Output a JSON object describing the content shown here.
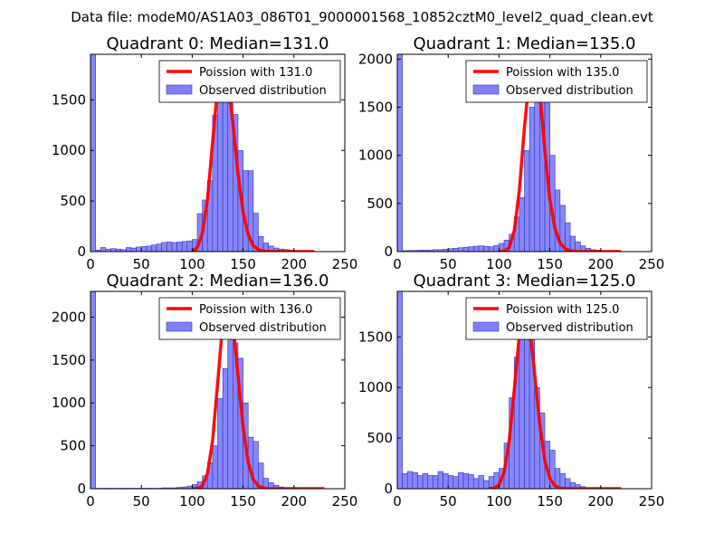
{
  "suptitle": "Data file: modeM0/AS1A03_086T01_9000001568_10852cztM0_level2_quad_clean.evt",
  "colors": {
    "bar": "#8080ff",
    "bar_edge": "#3333aa",
    "poisson": "#ff0000"
  },
  "legend": {
    "poisson_prefix": "Poission with",
    "observed": "Observed distribution"
  },
  "chart_data": [
    {
      "type": "bar",
      "title": "Quadrant 0: Median=131.0",
      "median": 131.0,
      "poisson_label": "Poission with 131.0",
      "xlim": [
        0,
        250
      ],
      "ylim": [
        0,
        1950
      ],
      "xticks": [
        "0",
        "50",
        "100",
        "150",
        "200",
        "250"
      ],
      "yticks": [
        {
          "v": 0,
          "t": "0"
        },
        {
          "v": 500,
          "t": "500"
        },
        {
          "v": 1000,
          "t": "1000"
        },
        {
          "v": 1500,
          "t": "1500"
        }
      ],
      "bin_width": 5,
      "bins": [
        {
          "x": 0,
          "v": 1950
        },
        {
          "x": 5,
          "v": 15
        },
        {
          "x": 10,
          "v": 40
        },
        {
          "x": 15,
          "v": 25
        },
        {
          "x": 20,
          "v": 30
        },
        {
          "x": 25,
          "v": 25
        },
        {
          "x": 30,
          "v": 20
        },
        {
          "x": 35,
          "v": 40
        },
        {
          "x": 40,
          "v": 35
        },
        {
          "x": 45,
          "v": 45
        },
        {
          "x": 50,
          "v": 50
        },
        {
          "x": 55,
          "v": 55
        },
        {
          "x": 60,
          "v": 65
        },
        {
          "x": 65,
          "v": 75
        },
        {
          "x": 70,
          "v": 90
        },
        {
          "x": 75,
          "v": 95
        },
        {
          "x": 80,
          "v": 90
        },
        {
          "x": 85,
          "v": 95
        },
        {
          "x": 90,
          "v": 100
        },
        {
          "x": 95,
          "v": 105
        },
        {
          "x": 100,
          "v": 120
        },
        {
          "x": 105,
          "v": 375
        },
        {
          "x": 110,
          "v": 510
        },
        {
          "x": 115,
          "v": 700
        },
        {
          "x": 120,
          "v": 1350
        },
        {
          "x": 125,
          "v": 1750
        },
        {
          "x": 130,
          "v": 1875
        },
        {
          "x": 135,
          "v": 1770
        },
        {
          "x": 140,
          "v": 1355
        },
        {
          "x": 145,
          "v": 1000
        },
        {
          "x": 150,
          "v": 800
        },
        {
          "x": 155,
          "v": 800
        },
        {
          "x": 160,
          "v": 380
        },
        {
          "x": 165,
          "v": 150
        },
        {
          "x": 170,
          "v": 85
        },
        {
          "x": 175,
          "v": 55
        },
        {
          "x": 180,
          "v": 35
        },
        {
          "x": 185,
          "v": 25
        },
        {
          "x": 190,
          "v": 20
        },
        {
          "x": 195,
          "v": 15
        }
      ],
      "poisson_x": [
        100,
        105,
        110,
        115,
        120,
        125,
        130,
        135,
        140,
        145,
        150,
        155,
        160,
        165,
        170,
        175,
        180,
        185,
        190,
        195,
        200,
        205,
        210,
        215,
        220
      ],
      "poisson_y": [
        0,
        40,
        180,
        520,
        1080,
        1630,
        1870,
        1720,
        1260,
        770,
        390,
        170,
        60,
        20,
        5,
        0,
        0,
        0,
        0,
        0,
        0,
        0,
        0,
        0,
        0
      ]
    },
    {
      "type": "bar",
      "title": "Quadrant 1: Median=135.0",
      "median": 135.0,
      "poisson_label": "Poission with 135.0",
      "xlim": [
        0,
        250
      ],
      "ylim": [
        0,
        2050
      ],
      "xticks": [
        "0",
        "50",
        "100",
        "150",
        "200",
        "250"
      ],
      "yticks": [
        {
          "v": 0,
          "t": "0"
        },
        {
          "v": 500,
          "t": "500"
        },
        {
          "v": 1000,
          "t": "1000"
        },
        {
          "v": 1500,
          "t": "1500"
        },
        {
          "v": 2000,
          "t": "2000"
        }
      ],
      "bin_width": 5,
      "bins": [
        {
          "x": 0,
          "v": 2050
        },
        {
          "x": 5,
          "v": 10
        },
        {
          "x": 10,
          "v": 12
        },
        {
          "x": 15,
          "v": 12
        },
        {
          "x": 20,
          "v": 15
        },
        {
          "x": 25,
          "v": 15
        },
        {
          "x": 30,
          "v": 15
        },
        {
          "x": 35,
          "v": 20
        },
        {
          "x": 40,
          "v": 20
        },
        {
          "x": 45,
          "v": 25
        },
        {
          "x": 50,
          "v": 30
        },
        {
          "x": 55,
          "v": 35
        },
        {
          "x": 60,
          "v": 40
        },
        {
          "x": 65,
          "v": 45
        },
        {
          "x": 70,
          "v": 50
        },
        {
          "x": 75,
          "v": 55
        },
        {
          "x": 80,
          "v": 60
        },
        {
          "x": 85,
          "v": 55
        },
        {
          "x": 90,
          "v": 50
        },
        {
          "x": 95,
          "v": 65
        },
        {
          "x": 100,
          "v": 85
        },
        {
          "x": 105,
          "v": 120
        },
        {
          "x": 110,
          "v": 180
        },
        {
          "x": 115,
          "v": 360
        },
        {
          "x": 120,
          "v": 560
        },
        {
          "x": 125,
          "v": 1050
        },
        {
          "x": 130,
          "v": 1500
        },
        {
          "x": 135,
          "v": 1760
        },
        {
          "x": 140,
          "v": 1620
        },
        {
          "x": 145,
          "v": 1560
        },
        {
          "x": 150,
          "v": 1000
        },
        {
          "x": 155,
          "v": 640
        },
        {
          "x": 160,
          "v": 480
        },
        {
          "x": 165,
          "v": 300
        },
        {
          "x": 170,
          "v": 160
        },
        {
          "x": 175,
          "v": 100
        },
        {
          "x": 180,
          "v": 60
        },
        {
          "x": 185,
          "v": 35
        },
        {
          "x": 190,
          "v": 20
        },
        {
          "x": 195,
          "v": 15
        }
      ],
      "poisson_x": [
        100,
        105,
        110,
        115,
        120,
        125,
        130,
        135,
        140,
        145,
        150,
        155,
        160,
        165,
        170,
        175,
        180,
        185,
        190,
        195,
        200,
        205,
        210,
        215,
        220
      ],
      "poisson_y": [
        0,
        5,
        40,
        220,
        640,
        1290,
        1830,
        1940,
        1660,
        1060,
        540,
        240,
        90,
        30,
        10,
        0,
        0,
        0,
        0,
        0,
        0,
        0,
        0,
        0,
        0
      ]
    },
    {
      "type": "bar",
      "title": "Quadrant 2: Median=136.0",
      "median": 136.0,
      "poisson_label": "Poission with 136.0",
      "xlim": [
        0,
        250
      ],
      "ylim": [
        0,
        2300
      ],
      "xticks": [
        "0",
        "50",
        "100",
        "150",
        "200",
        "250"
      ],
      "yticks": [
        {
          "v": 0,
          "t": "0"
        },
        {
          "v": 500,
          "t": "500"
        },
        {
          "v": 1000,
          "t": "1000"
        },
        {
          "v": 1500,
          "t": "1500"
        },
        {
          "v": 2000,
          "t": "2000"
        }
      ],
      "bin_width": 5,
      "bins": [
        {
          "x": 0,
          "v": 2300
        },
        {
          "x": 5,
          "v": 5
        },
        {
          "x": 10,
          "v": 5
        },
        {
          "x": 15,
          "v": 5
        },
        {
          "x": 20,
          "v": 5
        },
        {
          "x": 25,
          "v": 5
        },
        {
          "x": 30,
          "v": 5
        },
        {
          "x": 35,
          "v": 5
        },
        {
          "x": 40,
          "v": 5
        },
        {
          "x": 45,
          "v": 5
        },
        {
          "x": 50,
          "v": 5
        },
        {
          "x": 55,
          "v": 5
        },
        {
          "x": 60,
          "v": 5
        },
        {
          "x": 65,
          "v": 5
        },
        {
          "x": 70,
          "v": 10
        },
        {
          "x": 75,
          "v": 10
        },
        {
          "x": 80,
          "v": 10
        },
        {
          "x": 85,
          "v": 15
        },
        {
          "x": 90,
          "v": 20
        },
        {
          "x": 95,
          "v": 30
        },
        {
          "x": 100,
          "v": 50
        },
        {
          "x": 105,
          "v": 80
        },
        {
          "x": 110,
          "v": 150
        },
        {
          "x": 115,
          "v": 300
        },
        {
          "x": 120,
          "v": 500
        },
        {
          "x": 125,
          "v": 1050
        },
        {
          "x": 130,
          "v": 1400
        },
        {
          "x": 135,
          "v": 1950
        },
        {
          "x": 140,
          "v": 1700
        },
        {
          "x": 145,
          "v": 1520
        },
        {
          "x": 150,
          "v": 1000
        },
        {
          "x": 155,
          "v": 600
        },
        {
          "x": 160,
          "v": 550
        },
        {
          "x": 165,
          "v": 300
        },
        {
          "x": 170,
          "v": 120
        },
        {
          "x": 175,
          "v": 70
        },
        {
          "x": 180,
          "v": 40
        },
        {
          "x": 185,
          "v": 20
        },
        {
          "x": 190,
          "v": 10
        },
        {
          "x": 195,
          "v": 5
        }
      ],
      "poisson_x": [
        100,
        105,
        110,
        115,
        120,
        125,
        130,
        135,
        140,
        145,
        150,
        155,
        160,
        165,
        170,
        175,
        180,
        185,
        190,
        195,
        200,
        205,
        210,
        215,
        220,
        225,
        230
      ],
      "poisson_y": [
        0,
        5,
        30,
        180,
        560,
        1230,
        1930,
        2200,
        1930,
        1320,
        720,
        310,
        110,
        30,
        10,
        0,
        0,
        0,
        0,
        0,
        0,
        0,
        0,
        0,
        0,
        0,
        0
      ]
    },
    {
      "type": "bar",
      "title": "Quadrant 3: Median=125.0",
      "median": 125.0,
      "poisson_label": "Poission with 125.0",
      "xlim": [
        0,
        250
      ],
      "ylim": [
        0,
        1950
      ],
      "xticks": [
        "0",
        "50",
        "100",
        "150",
        "200",
        "250"
      ],
      "yticks": [
        {
          "v": 0,
          "t": "0"
        },
        {
          "v": 500,
          "t": "500"
        },
        {
          "v": 1000,
          "t": "1000"
        },
        {
          "v": 1500,
          "t": "1500"
        }
      ],
      "bin_width": 5,
      "bins": [
        {
          "x": 0,
          "v": 1950
        },
        {
          "x": 5,
          "v": 150
        },
        {
          "x": 10,
          "v": 170
        },
        {
          "x": 15,
          "v": 160
        },
        {
          "x": 20,
          "v": 130
        },
        {
          "x": 25,
          "v": 150
        },
        {
          "x": 30,
          "v": 130
        },
        {
          "x": 35,
          "v": 130
        },
        {
          "x": 40,
          "v": 170
        },
        {
          "x": 45,
          "v": 150
        },
        {
          "x": 50,
          "v": 130
        },
        {
          "x": 55,
          "v": 120
        },
        {
          "x": 60,
          "v": 160
        },
        {
          "x": 65,
          "v": 150
        },
        {
          "x": 70,
          "v": 140
        },
        {
          "x": 75,
          "v": 100
        },
        {
          "x": 80,
          "v": 130
        },
        {
          "x": 85,
          "v": 80
        },
        {
          "x": 90,
          "v": 120
        },
        {
          "x": 95,
          "v": 160
        },
        {
          "x": 100,
          "v": 200
        },
        {
          "x": 105,
          "v": 450
        },
        {
          "x": 110,
          "v": 900
        },
        {
          "x": 115,
          "v": 1300
        },
        {
          "x": 120,
          "v": 1750
        },
        {
          "x": 125,
          "v": 1780
        },
        {
          "x": 130,
          "v": 1720
        },
        {
          "x": 135,
          "v": 1000
        },
        {
          "x": 140,
          "v": 750
        },
        {
          "x": 145,
          "v": 470
        },
        {
          "x": 150,
          "v": 380
        },
        {
          "x": 155,
          "v": 200
        },
        {
          "x": 160,
          "v": 150
        },
        {
          "x": 165,
          "v": 100
        },
        {
          "x": 170,
          "v": 60
        },
        {
          "x": 175,
          "v": 40
        },
        {
          "x": 180,
          "v": 20
        },
        {
          "x": 185,
          "v": 10
        },
        {
          "x": 190,
          "v": 10
        },
        {
          "x": 195,
          "v": 5
        }
      ],
      "poisson_x": [
        90,
        95,
        100,
        105,
        110,
        115,
        120,
        125,
        130,
        135,
        140,
        145,
        150,
        155,
        160,
        165,
        170,
        175,
        180,
        185,
        190,
        195,
        200,
        205,
        210,
        215,
        220
      ],
      "poisson_y": [
        0,
        5,
        40,
        160,
        470,
        980,
        1530,
        1790,
        1630,
        1140,
        640,
        280,
        100,
        30,
        5,
        0,
        0,
        0,
        0,
        0,
        0,
        0,
        0,
        0,
        0,
        0,
        0
      ]
    }
  ]
}
